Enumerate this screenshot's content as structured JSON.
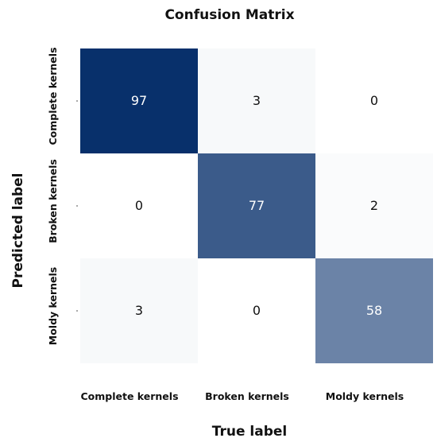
{
  "chart_data": {
    "type": "heatmap",
    "title": "Confusion Matrix",
    "xlabel": "True label",
    "ylabel": "Predicted label",
    "x_categories": [
      "Complete kernels",
      "Broken kernels",
      "Moldy kernels"
    ],
    "y_categories": [
      "Complete kernels",
      "Broken kernels",
      "Moldy kernels"
    ],
    "values": [
      [
        97,
        3,
        0
      ],
      [
        0,
        77,
        2
      ],
      [
        3,
        0,
        58
      ]
    ],
    "colormap": {
      "low": "#ffffff",
      "high": "#08306b"
    },
    "colorbar": false,
    "grid": false
  }
}
